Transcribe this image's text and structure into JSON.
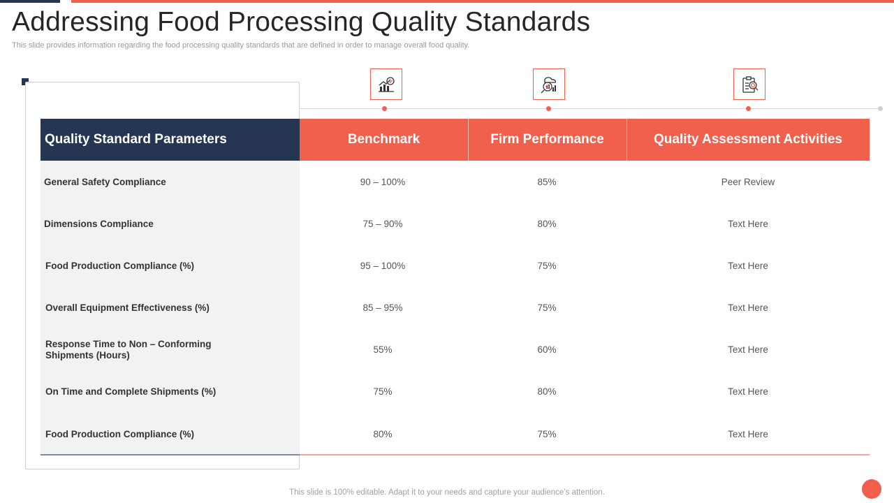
{
  "slide": {
    "title": "Addressing Food Processing Quality Standards",
    "subtitle": "This slide provides information regarding the food processing quality standards that are defined in order to manage overall food quality.",
    "footer": "This slide is 100% editable. Adapt it to your needs and capture your audience’s attention."
  },
  "colors": {
    "navy": "#263652",
    "accent": "#f0604d",
    "panel": "#f2f2f2"
  },
  "icons": [
    "benchmark-chart-icon",
    "performance-analysis-icon",
    "assessment-checklist-icon"
  ],
  "table": {
    "headers": [
      "Quality Standard Parameters",
      "Benchmark",
      "Firm Performance",
      "Quality Assessment Activities"
    ],
    "rows": [
      {
        "param": "General Safety Compliance",
        "benchmark": "90 – 100%",
        "performance": "85%",
        "activity": "Peer Review"
      },
      {
        "param": "Dimensions Compliance",
        "benchmark": "75 – 90%",
        "performance": "80%",
        "activity": "Text Here"
      },
      {
        "param": "Food Production Compliance (%)",
        "benchmark": "95 – 100%",
        "performance": "75%",
        "activity": "Text Here"
      },
      {
        "param": "Overall Equipment Effectiveness (%)",
        "benchmark": "85 – 95%",
        "performance": "75%",
        "activity": "Text Here"
      },
      {
        "param": "Response Time to Non – Conforming Shipments (Hours)",
        "benchmark": "55%",
        "performance": "60%",
        "activity": "Text Here"
      },
      {
        "param": "On Time and Complete Shipments (%)",
        "benchmark": "75%",
        "performance": "80%",
        "activity": "Text Here"
      },
      {
        "param": "Food Production Compliance (%)",
        "benchmark": "80%",
        "performance": "75%",
        "activity": "Text Here"
      }
    ]
  }
}
